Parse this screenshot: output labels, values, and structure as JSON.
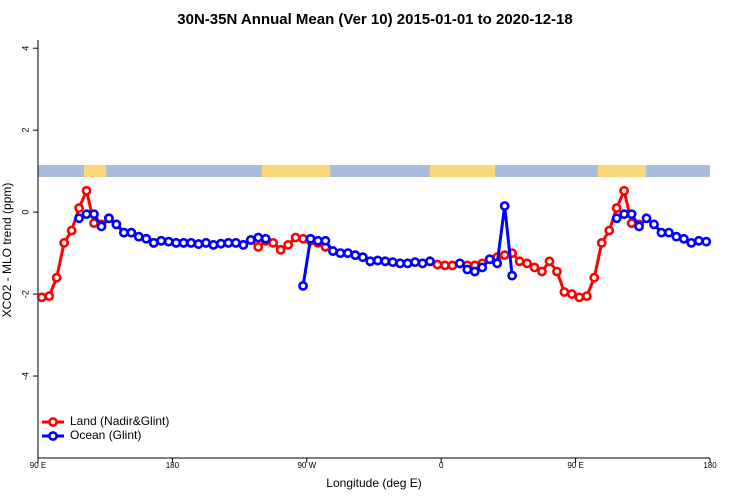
{
  "chart_data": {
    "type": "line",
    "title": "30N-35N Annual Mean (Ver 10)   2015-01-01 to 2020-12-18",
    "x_label": "Longitude (deg E)",
    "y_label": "XCO2 - MLO trend (ppm)",
    "x": [
      92.5,
      97.5,
      102.5,
      107.5,
      112.5,
      117.5,
      122.5,
      127.5,
      132.5,
      137.5,
      142.5,
      147.5,
      152.5,
      157.5,
      162.5,
      167.5,
      172.5,
      177.5,
      182.5,
      187.5,
      192.5,
      197.5,
      202.5,
      207.5,
      212.5,
      217.5,
      222.5,
      227.5,
      232.5,
      237.5,
      242.5,
      247.5,
      252.5,
      257.5,
      262.5,
      267.5,
      272.5,
      277.5,
      282.5,
      287.5,
      292.5,
      297.5,
      302.5,
      307.5,
      312.5,
      317.5,
      322.5,
      327.5,
      332.5,
      337.5,
      342.5,
      347.5,
      352.5,
      357.5,
      362.5,
      367.5,
      372.5,
      377.5,
      382.5,
      387.5,
      392.5,
      397.5,
      402.5,
      407.5,
      412.5,
      417.5,
      422.5,
      427.5,
      432.5,
      437.5,
      442.5,
      447.5,
      452.5,
      457.5,
      462.5,
      467.5,
      472.5,
      477.5,
      482.5,
      487.5,
      492.5,
      497.5,
      502.5,
      507.5,
      512.5,
      517.5,
      522.5,
      527.5,
      532.5,
      537.5
    ],
    "series": [
      {
        "name": "Land (Nadir&Glint)",
        "color": "#ff0000",
        "values": [
          -2.08,
          -2.05,
          -1.6,
          -0.75,
          -0.45,
          0.1,
          0.52,
          -0.27,
          -0.3,
          -0.15,
          -0.3,
          -0.5,
          -0.5,
          -0.6,
          -0.65,
          -0.75,
          -0.7,
          -0.72,
          -0.75,
          -0.75,
          -0.75,
          -0.78,
          -0.75,
          -0.8,
          -0.77,
          -0.75,
          -0.75,
          -0.8,
          -0.68,
          -0.85,
          -0.7,
          -0.75,
          -0.92,
          -0.8,
          -0.62,
          -0.65,
          -0.7,
          -0.75,
          -0.85,
          -0.95,
          -1.0,
          -1.0,
          -1.05,
          -1.1,
          -1.2,
          -1.18,
          -1.2,
          -1.22,
          -1.25,
          -1.25,
          -1.22,
          -1.25,
          -1.2,
          -1.28,
          -1.3,
          -1.3,
          -1.25,
          -1.3,
          -1.3,
          -1.25,
          -1.15,
          -1.1,
          -1.05,
          -1.0,
          -1.2,
          -1.25,
          -1.35,
          -1.45,
          -1.2,
          -1.45,
          -1.95,
          -2.0,
          -2.08,
          -2.05,
          -1.6,
          -0.75,
          -0.45,
          0.1,
          0.52,
          -0.27,
          -0.3,
          null,
          null,
          null,
          null,
          null,
          null,
          null,
          null,
          null
        ]
      },
      {
        "name": "Ocean (Glint)",
        "color": "#0000ff",
        "values": [
          null,
          null,
          null,
          null,
          null,
          -0.15,
          -0.05,
          -0.05,
          -0.35,
          -0.15,
          -0.3,
          -0.5,
          -0.5,
          -0.6,
          -0.65,
          -0.75,
          -0.7,
          -0.72,
          -0.75,
          -0.75,
          -0.75,
          -0.78,
          -0.75,
          -0.8,
          -0.77,
          -0.75,
          -0.75,
          -0.8,
          -0.68,
          -0.62,
          -0.65,
          null,
          null,
          null,
          null,
          -1.8,
          -0.65,
          -0.7,
          -0.7,
          -0.95,
          -1.0,
          -1.0,
          -1.05,
          -1.1,
          -1.2,
          -1.18,
          -1.2,
          -1.22,
          -1.25,
          -1.25,
          -1.22,
          -1.25,
          -1.2,
          null,
          null,
          null,
          -1.25,
          -1.4,
          -1.45,
          -1.35,
          -1.15,
          -1.25,
          0.15,
          -1.55,
          null,
          null,
          null,
          null,
          null,
          null,
          null,
          null,
          null,
          null,
          null,
          null,
          null,
          -0.15,
          -0.05,
          -0.05,
          -0.35,
          -0.15,
          -0.3,
          -0.5,
          -0.5,
          -0.6,
          -0.65,
          -0.75,
          -0.7,
          -0.72
        ]
      }
    ],
    "xlim": [
      90,
      540
    ],
    "xticks": [
      {
        "value": 90,
        "label": "90 E"
      },
      180,
      {
        "value": 270,
        "label": "90 W"
      },
      {
        "value": 360,
        "label": "0"
      },
      {
        "value": 450,
        "label": "90 E"
      },
      {
        "value": 540,
        "label": "180"
      }
    ],
    "ylim": [
      -6,
      4.2
    ],
    "yticks": [
      -4,
      -2,
      0,
      2,
      4
    ],
    "legend": "bottomleft"
  }
}
